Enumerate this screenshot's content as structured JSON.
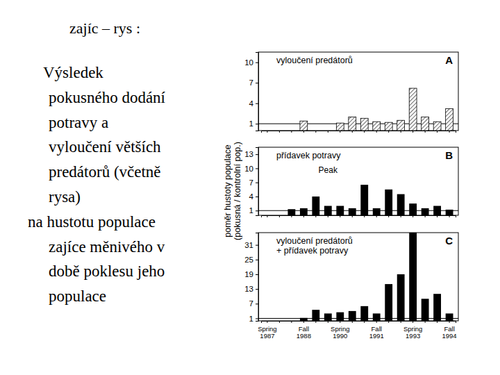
{
  "text": {
    "title": "zajíc – rys :",
    "paragraphs": [
      {
        "lines": [
          "Výsledek",
          "pokusného dodání",
          "potravy a",
          "vyloučení větších",
          "predátorů (včetně",
          "rysa)"
        ]
      },
      {
        "lines": [
          "na hustotu populace",
          "zajíce měnivého v",
          "době poklesu jeho",
          "populace"
        ]
      }
    ]
  },
  "shared_axis_title": [
    "poměr hustoty populace",
    "(pokusná / kontrolní pop.)"
  ],
  "chart_data": [
    {
      "type": "bar",
      "panel": "A",
      "title": "vyloučení predátorů",
      "categories": [
        "Spring 1987",
        null,
        null,
        "Fall 1988",
        null,
        null,
        "Spring 1990",
        null,
        null,
        "Fall 1991",
        null,
        null,
        "Spring 1993",
        null,
        null,
        "Fall 1994"
      ],
      "values": [
        null,
        null,
        null,
        1.4,
        null,
        null,
        1.1,
        2,
        1.8,
        1.3,
        1.2,
        1.5,
        6.2,
        2,
        1.3,
        3.2
      ],
      "color": "#444444",
      "ylim": [
        0,
        11.5
      ],
      "yticks": [
        1,
        4,
        7,
        10
      ],
      "tick_labels": "y"
    },
    {
      "type": "bar",
      "panel": "B",
      "title": "přídavek potravy",
      "categories": [
        "Spring 1987",
        null,
        null,
        "Fall 1988",
        null,
        null,
        "Spring 1990",
        null,
        null,
        "Fall 1991",
        null,
        null,
        "Spring 1993",
        null,
        null,
        "Fall 1994"
      ],
      "values": [
        null,
        null,
        1.3,
        1.5,
        4,
        2,
        2,
        1.5,
        6.5,
        1.5,
        5.5,
        4.5,
        2.5,
        1.5,
        2,
        1.2
      ],
      "color": "#000000",
      "ylim": [
        0,
        14.5
      ],
      "yticks": [
        1,
        4,
        7,
        10,
        13
      ],
      "tick_labels": "y",
      "annotations": [
        {
          "text": "Peak",
          "x": 5,
          "y": 9
        }
      ]
    },
    {
      "type": "bar",
      "panel": "C",
      "title": [
        "vyloučení predátorů",
        "+ přídavek potravy"
      ],
      "categories": [
        "Spring 1987",
        null,
        null,
        "Fall 1988",
        null,
        null,
        "Spring 1990",
        null,
        null,
        "Fall 1991",
        null,
        null,
        "Spring 1993",
        null,
        null,
        "Fall 1994"
      ],
      "values": [
        null,
        null,
        null,
        1.2,
        4.5,
        3,
        3.5,
        4,
        6,
        3,
        15,
        19,
        36,
        9,
        11,
        3
      ],
      "color": "#000000",
      "ylim": [
        0,
        36
      ],
      "yticks": [
        1,
        7,
        13,
        19,
        25,
        31
      ]
    }
  ]
}
